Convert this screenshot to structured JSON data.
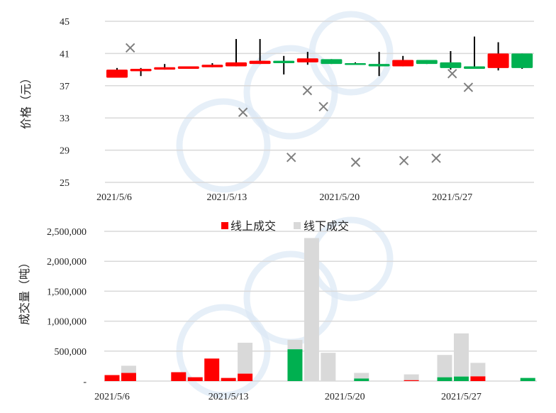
{
  "colors": {
    "up": "#ff0000",
    "down": "#00b050",
    "offline": "#d9d9d9",
    "marker": "#7f7f7f",
    "grid": "#d9d9d9",
    "wick": "#000000"
  },
  "chart_data": [
    {
      "type": "candlestick",
      "ylabel": "价格（元）",
      "ylim": [
        25,
        45
      ],
      "yticks": [
        25,
        29,
        33,
        37,
        41,
        45
      ],
      "xticks": [
        "2021/5/6",
        "2021/5/13",
        "2021/5/20",
        "2021/5/27"
      ],
      "grid": true,
      "candles": [
        {
          "date": "2021/5/6",
          "open": 38.0,
          "close": 39.0,
          "high": 39.2,
          "low": 38.0
        },
        {
          "date": "2021/5/7",
          "open": 38.8,
          "close": 39.1,
          "high": 39.2,
          "low": 38.2
        },
        {
          "date": "2021/5/10",
          "open": 39.0,
          "close": 39.3,
          "high": 39.7,
          "low": 39.0
        },
        {
          "date": "2021/5/11",
          "open": 39.1,
          "close": 39.4,
          "high": 39.4,
          "low": 39.1
        },
        {
          "date": "2021/5/12",
          "open": 39.3,
          "close": 39.6,
          "high": 39.8,
          "low": 39.3
        },
        {
          "date": "2021/5/13",
          "open": 39.4,
          "close": 39.9,
          "high": 42.8,
          "low": 39.4
        },
        {
          "date": "2021/5/14",
          "open": 39.7,
          "close": 40.1,
          "high": 42.8,
          "low": 39.7
        },
        {
          "date": "2021/5/17",
          "open": 40.1,
          "close": 39.8,
          "high": 40.7,
          "low": 38.4
        },
        {
          "date": "2021/5/18",
          "open": 39.9,
          "close": 40.4,
          "high": 41.2,
          "low": 39.6
        },
        {
          "date": "2021/5/19",
          "open": 40.3,
          "close": 39.7,
          "high": 40.3,
          "low": 39.7
        },
        {
          "date": "2021/5/20",
          "open": 39.8,
          "close": 39.6,
          "high": 39.9,
          "low": 39.6
        },
        {
          "date": "2021/5/21",
          "open": 39.7,
          "close": 39.4,
          "high": 41.2,
          "low": 38.2
        },
        {
          "date": "2021/5/24",
          "open": 39.4,
          "close": 40.2,
          "high": 40.7,
          "low": 39.4
        },
        {
          "date": "2021/5/25",
          "open": 40.2,
          "close": 39.7,
          "high": 40.2,
          "low": 39.7
        },
        {
          "date": "2021/5/26",
          "open": 39.9,
          "close": 39.2,
          "high": 41.3,
          "low": 39.0
        },
        {
          "date": "2021/5/27",
          "open": 39.4,
          "close": 39.1,
          "high": 43.1,
          "low": 39.1
        },
        {
          "date": "2021/5/28",
          "open": 39.2,
          "close": 41.0,
          "high": 42.4,
          "low": 38.9
        },
        {
          "date": "2021/5/31",
          "open": 41.0,
          "close": 39.2,
          "high": 41.0,
          "low": 39.1
        }
      ],
      "offline_price_markers": [
        {
          "date": "2021/5/7",
          "value": 41.7
        },
        {
          "date": "2021/5/14",
          "value": 33.7
        },
        {
          "date": "2021/5/17",
          "value": 28.1
        },
        {
          "date": "2021/5/18",
          "value": 36.4
        },
        {
          "date": "2021/5/19",
          "value": 34.4
        },
        {
          "date": "2021/5/21",
          "value": 27.5
        },
        {
          "date": "2021/5/24",
          "value": 27.7
        },
        {
          "date": "2021/5/26",
          "value": 28.0
        },
        {
          "date": "2021/5/27",
          "value": 38.5
        },
        {
          "date": "2021/5/28",
          "value": 36.8
        }
      ]
    },
    {
      "type": "bar",
      "stacked": true,
      "ylabel": "成交量（吨）",
      "ylim": [
        0,
        2500000
      ],
      "yticks": [
        "-",
        "500,000",
        "1,000,000",
        "1,500,000",
        "2,000,000",
        "2,500,000"
      ],
      "xticks": [
        "2021/5/6",
        "2021/5/13",
        "2021/5/20",
        "2021/5/27"
      ],
      "grid": true,
      "legend_position": "top",
      "series": [
        {
          "name": "线上成交",
          "values": [
            100000,
            136000,
            148000,
            64000,
            376000,
            52000,
            124000,
            532000,
            0,
            0,
            0,
            44000,
            16000,
            0,
            64000,
            76000,
            80000,
            52000
          ]
        },
        {
          "name": "线下成交",
          "values": [
            0,
            120000,
            0,
            0,
            0,
            0,
            516000,
            156000,
            2388000,
            472000,
            0,
            92000,
            96000,
            0,
            372000,
            720000,
            224000,
            0
          ]
        }
      ],
      "dates": [
        "2021/5/6",
        "2021/5/7",
        "2021/5/10",
        "2021/5/11",
        "2021/5/12",
        "2021/5/13",
        "2021/5/14",
        "2021/5/17",
        "2021/5/18",
        "2021/5/19",
        "2021/5/20",
        "2021/5/21",
        "2021/5/24",
        "2021/5/25",
        "2021/5/26",
        "2021/5/27",
        "2021/5/28",
        "2021/5/31"
      ]
    }
  ]
}
